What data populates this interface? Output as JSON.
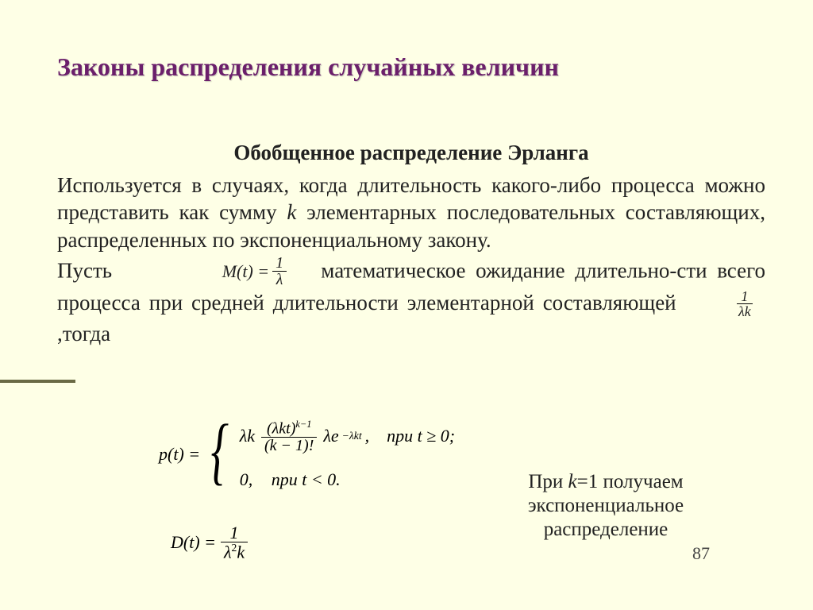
{
  "title": "Законы распределения случайных величин",
  "subtitle": "Обобщенное распределение Эрланга",
  "para1_a": "Используется в случаях, когда длительность какого-либо процесса можно представить как сумму ",
  "para1_k": "k",
  "para1_b": " элементарных последовательных составляющих, распределенных по экспоненциальному закону.",
  "pust": "Пусть",
  "mt_lhs": "M(t) =",
  "one": "1",
  "lambda": "λ",
  "para2_a": "математическое ожидание длительно-сти всего процесса при средней длительности элементарной составляющей",
  "then": ",тогда",
  "lk_den": "λk",
  "pw_lhs": "p(t) =",
  "case1_lk": "λk",
  "case1_num": "(λkt)",
  "case1_num_exp": "k−1",
  "case1_den": "(k − 1)!",
  "case1_le": "λe",
  "case1_le_exp": "−λkt",
  "case1_comma": ",",
  "case1_cond": "при    t ≥ 0;",
  "case2": "0,",
  "case2_cond": "при    t < 0.",
  "dt_lhs": "D(t) =",
  "dt_den_a": "λ",
  "dt_den_exp": "2",
  "dt_den_b": "k",
  "sidenote_a": "При ",
  "sidenote_k": "k",
  "sidenote_b": "=1 получаем экспоненциальное распределение",
  "page_num": "87",
  "colors": {
    "bg": "#feffe6",
    "title": "#6b1f6b",
    "rule": "#6a6a45",
    "text": "#222222"
  }
}
